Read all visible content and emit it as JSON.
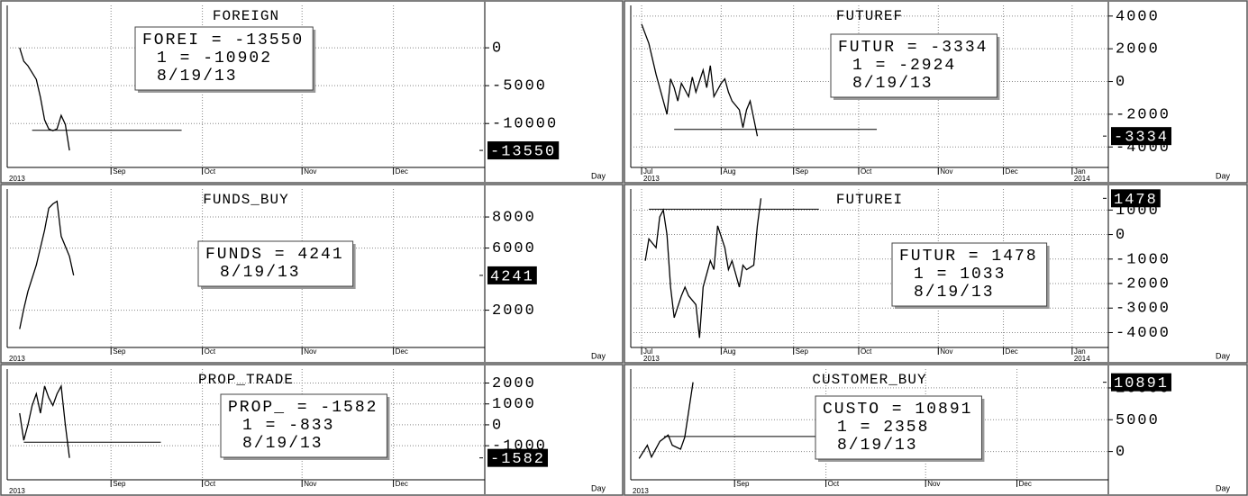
{
  "chart_data": [
    {
      "type": "line",
      "title": "FOREIGN",
      "annotation": [
        "FOREI = -13550",
        "1 = -10902",
        "8/19/13"
      ],
      "x_label": "Day",
      "xlim": [
        0,
        115
      ],
      "xticks": [
        {
          "value": 25,
          "label": "Sep"
        },
        {
          "value": 47,
          "label": "Oct"
        },
        {
          "value": 71,
          "label": "Nov"
        },
        {
          "value": 93,
          "label": "Dec"
        }
      ],
      "years": [
        {
          "value": 0,
          "label": "2013"
        }
      ],
      "ylim": [
        -15800,
        5600
      ],
      "yticks": [
        0,
        -5000,
        -10000
      ],
      "grid": true,
      "color": "#000000",
      "x": [
        3,
        4,
        5,
        7,
        8,
        9,
        10,
        11,
        12,
        13,
        14,
        15
      ],
      "values": [
        0,
        -1786,
        -2381,
        -4167,
        -6548,
        -9524,
        -10714,
        -10952,
        -10714,
        -8929,
        -10119,
        -13550
      ],
      "reference": {
        "value": -10902,
        "x_range": [
          6,
          42
        ]
      }
    },
    {
      "type": "line",
      "title": "FUTUREF",
      "annotation": [
        "FUTUR = -3334",
        "1 = -2924",
        "8/19/13"
      ],
      "x_label": "Day",
      "xlim": [
        0,
        132
      ],
      "xticks": [
        {
          "value": 3,
          "label": "Jul"
        },
        {
          "value": 25,
          "label": "Aug"
        },
        {
          "value": 45,
          "label": "Sep"
        },
        {
          "value": 63,
          "label": "Oct"
        },
        {
          "value": 85,
          "label": "Nov"
        },
        {
          "value": 103,
          "label": "Dec"
        },
        {
          "value": 122,
          "label": "Jan"
        }
      ],
      "years": [
        {
          "value": 3,
          "label": "2013"
        },
        {
          "value": 122,
          "label": "2014"
        }
      ],
      "ylim": [
        -5250,
        4650
      ],
      "yticks": [
        4000,
        2000,
        0,
        -2000,
        -4000
      ],
      "grid": true,
      "color": "#000000",
      "x": [
        3,
        5,
        7,
        10,
        11,
        12,
        13,
        14,
        16,
        17,
        18,
        20,
        21,
        22,
        23,
        25,
        26,
        27,
        28,
        30,
        31,
        32,
        33,
        35
      ],
      "values": [
        3514,
        2324,
        432,
        -2000,
        162,
        -378,
        -1189,
        -108,
        -919,
        270,
        -649,
        703,
        -378,
        973,
        -919,
        -108,
        162,
        -649,
        -1189,
        -1730,
        -2811,
        -1730,
        -1189,
        -3334
      ],
      "reference": {
        "value": -2924,
        "x_range": [
          12,
          68
        ]
      }
    },
    {
      "type": "line",
      "title": "FUNDS_BUY",
      "annotation": [
        "FUNDS = 4241",
        "8/19/13"
      ],
      "x_label": "Day",
      "xlim": [
        0,
        115
      ],
      "xticks": [
        {
          "value": 25,
          "label": "Sep"
        },
        {
          "value": 47,
          "label": "Oct"
        },
        {
          "value": 71,
          "label": "Nov"
        },
        {
          "value": 93,
          "label": "Dec"
        }
      ],
      "years": [
        {
          "value": 0,
          "label": "2013"
        }
      ],
      "ylim": [
        -400,
        9800
      ],
      "yticks": [
        8000,
        6000,
        2000
      ],
      "grid": true,
      "color": "#000000",
      "x": [
        3,
        4,
        5,
        7,
        9,
        10,
        11,
        12,
        13,
        15,
        16
      ],
      "values": [
        789,
        2085,
        3211,
        4901,
        7155,
        8563,
        8845,
        9014,
        6761,
        5465,
        4241
      ]
    },
    {
      "type": "line",
      "title": "FUTUREI",
      "annotation": [
        "FUTUR = 1478",
        "1 = 1033",
        "8/19/13"
      ],
      "x_label": "Day",
      "xlim": [
        0,
        132
      ],
      "xticks": [
        {
          "value": 3,
          "label": "Jul"
        },
        {
          "value": 25,
          "label": "Aug"
        },
        {
          "value": 45,
          "label": "Sep"
        },
        {
          "value": 63,
          "label": "Oct"
        },
        {
          "value": 85,
          "label": "Nov"
        },
        {
          "value": 103,
          "label": "Dec"
        },
        {
          "value": 122,
          "label": "Jan"
        }
      ],
      "years": [
        {
          "value": 3,
          "label": "2013"
        },
        {
          "value": 122,
          "label": "2014"
        }
      ],
      "ylim": [
        -4607,
        1857
      ],
      "yticks": [
        1000,
        0,
        -1000,
        -2000,
        -3000,
        -4000
      ],
      "grid": true,
      "color": "#000000",
      "x": [
        4,
        5,
        7,
        8,
        9,
        10,
        11,
        12,
        14,
        15,
        16,
        18,
        19,
        20,
        22,
        23,
        24,
        26,
        27,
        28,
        30,
        31,
        32,
        34,
        35,
        36
      ],
      "values": [
        -1071,
        -179,
        -536,
        714,
        1000,
        0,
        -2143,
        -3393,
        -2500,
        -2143,
        -2500,
        -2857,
        -4214,
        -2143,
        -1071,
        -1429,
        357,
        -536,
        -1429,
        -1071,
        -2143,
        -1250,
        -1429,
        -1250,
        357,
        1478
      ],
      "reference": {
        "value": 1033,
        "x_range": [
          5,
          52
        ]
      }
    },
    {
      "type": "line",
      "title": "PROP_TRADE",
      "annotation": [
        "PROP_ = -1582",
        "1 = -833",
        "8/19/13"
      ],
      "x_label": "Day",
      "xlim": [
        0,
        115
      ],
      "xticks": [
        {
          "value": 25,
          "label": "Sep"
        },
        {
          "value": 47,
          "label": "Oct"
        },
        {
          "value": 71,
          "label": "Nov"
        },
        {
          "value": 93,
          "label": "Dec"
        }
      ],
      "years": [
        {
          "value": 0,
          "label": "2013"
        }
      ],
      "ylim": [
        -2630,
        2667
      ],
      "yticks": [
        2000,
        1000,
        0,
        -1000
      ],
      "grid": true,
      "color": "#000000",
      "x": [
        3,
        4,
        5,
        6,
        7,
        8,
        9,
        10,
        11,
        12,
        13,
        14,
        15
      ],
      "values": [
        556,
        -741,
        0,
        926,
        1481,
        556,
        1852,
        1296,
        926,
        1481,
        1852,
        0,
        -1582
      ],
      "reference": {
        "value": -833,
        "x_range": [
          4,
          37
        ]
      }
    },
    {
      "type": "line",
      "title": "CUSTOMER_BUY",
      "annotation": [
        "CUSTO = 10891",
        "1 = 2358",
        "8/19/13"
      ],
      "x_label": "Day",
      "xlim": [
        0,
        115
      ],
      "xticks": [
        {
          "value": 25,
          "label": "Sep"
        },
        {
          "value": 47,
          "label": "Oct"
        },
        {
          "value": 71,
          "label": "Nov"
        },
        {
          "value": 93,
          "label": "Dec"
        }
      ],
      "years": [
        {
          "value": 0,
          "label": "2013"
        }
      ],
      "ylim": [
        -4444,
        12963
      ],
      "yticks": [
        10000,
        5000,
        0
      ],
      "grid": true,
      "color": "#000000",
      "x": [
        2,
        4,
        5,
        7,
        9,
        10,
        12,
        13,
        14,
        15
      ],
      "values": [
        -1111,
        988,
        -864,
        1605,
        2593,
        988,
        370,
        2222,
        6543,
        10891
      ],
      "reference": {
        "value": 2358,
        "x_range": [
          8,
          83
        ]
      }
    }
  ]
}
